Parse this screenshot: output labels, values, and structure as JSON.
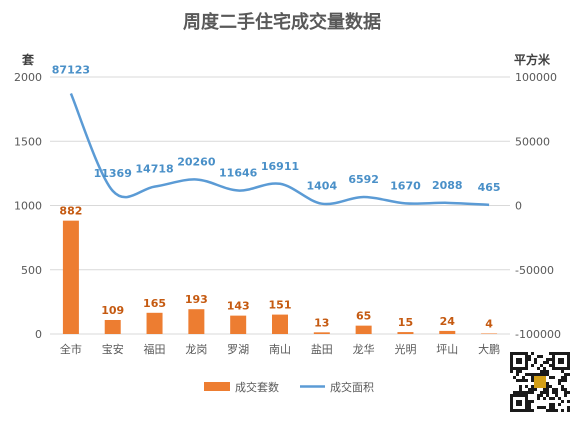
{
  "chart_data": {
    "type": "bar",
    "title": "周度二手住宅成交量数据",
    "left_axis_unit": "套",
    "right_axis_unit": "平方米",
    "categories": [
      "全市",
      "宝安",
      "福田",
      "龙岗",
      "罗湖",
      "南山",
      "盐田",
      "龙华",
      "光明",
      "坪山",
      "大鹏"
    ],
    "series": [
      {
        "name": "成交套数",
        "type": "bar",
        "axis": "left",
        "color": "#ed7d31",
        "values": [
          882,
          109,
          165,
          193,
          143,
          151,
          13,
          65,
          15,
          24,
          4
        ],
        "labels": [
          "882",
          "109",
          "165",
          "193",
          "143",
          "151",
          "13",
          "65",
          "15",
          "24",
          "4"
        ]
      },
      {
        "name": "成交面积",
        "type": "line",
        "axis": "right",
        "color": "#5b9bd5",
        "smooth": true,
        "values": [
          87123,
          11369,
          14718,
          20260,
          11646,
          16911,
          1404,
          6592,
          1670,
          2088,
          465
        ],
        "labels": [
          "87123",
          "11369",
          "14718",
          "20260",
          "11646",
          "16911",
          "1404",
          "6592",
          "1670",
          "2088",
          "465"
        ]
      }
    ],
    "left_axis": {
      "min": 0,
      "max": 2000,
      "ticks": [
        0,
        500,
        1000,
        1500,
        2000
      ],
      "tick_labels": [
        "0",
        "500",
        "1000",
        "1500",
        "2000"
      ]
    },
    "right_axis": {
      "min": -100000,
      "max": 100000,
      "ticks": [
        -100000,
        -50000,
        0,
        50000,
        100000
      ],
      "tick_labels": [
        "-100000",
        "-50000",
        "0",
        "50000",
        "100000"
      ]
    },
    "grid": true,
    "legend_position": "bottom"
  },
  "qr_code": {
    "icon": "qr-code-icon"
  }
}
